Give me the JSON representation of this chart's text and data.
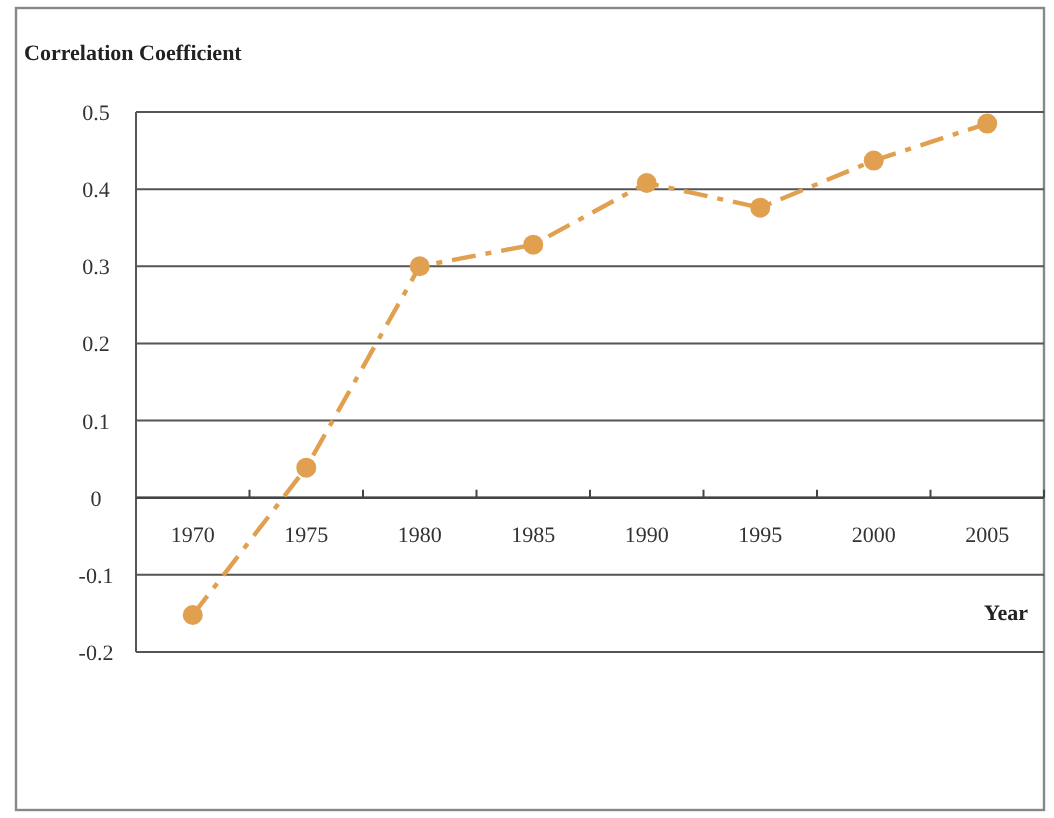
{
  "chart_data": {
    "type": "line",
    "ylabel": "Correlation Coefficient",
    "xlabel": "Year",
    "categories": [
      "1970",
      "1975",
      "1980",
      "1985",
      "1990",
      "1995",
      "2000",
      "2005"
    ],
    "series": [
      {
        "color": "#e0a050",
        "values": [
          -0.152,
          0.039,
          0.3,
          0.328,
          0.408,
          0.376,
          0.437,
          0.485
        ]
      }
    ],
    "ylim": [
      -0.2,
      0.5
    ],
    "yticks": [
      -0.2,
      -0.1,
      0,
      0.1,
      0.2,
      0.3,
      0.4,
      0.5
    ],
    "grid": "y",
    "marker": "circle",
    "line_style": "dashed"
  }
}
